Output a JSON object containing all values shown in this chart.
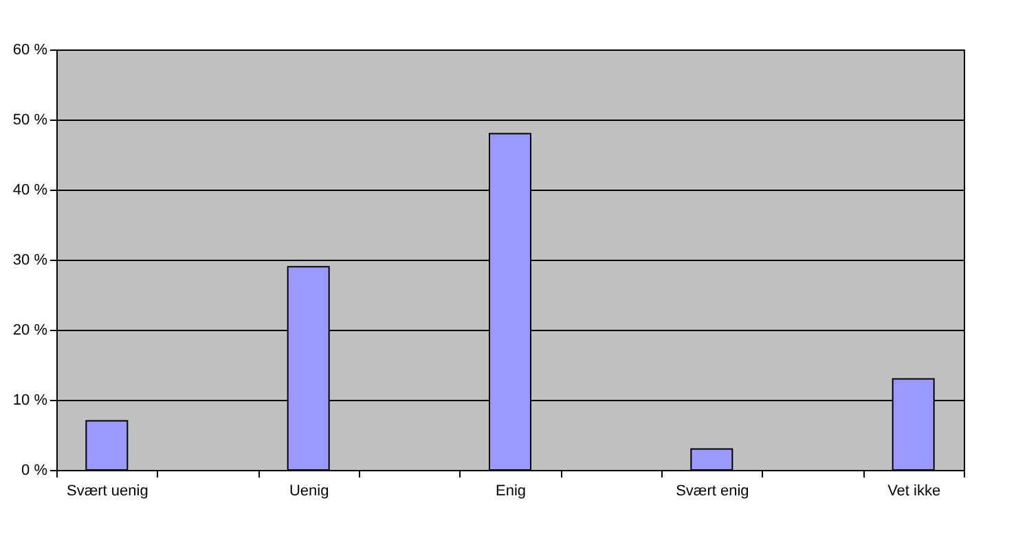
{
  "chart_data": {
    "type": "bar",
    "categories": [
      "Svært uenig",
      null,
      "Uenig",
      null,
      "Enig",
      null,
      "Svært enig",
      null,
      "Vet ikke"
    ],
    "values": [
      7,
      null,
      29,
      null,
      48,
      null,
      3,
      null,
      13
    ],
    "color": "#9999ff",
    "ylim": [
      0,
      60
    ],
    "yticks": [
      {
        "value": 0,
        "label": "0 %"
      },
      {
        "value": 10,
        "label": "10 %"
      },
      {
        "value": 20,
        "label": "20 %"
      },
      {
        "value": 30,
        "label": "30 %"
      },
      {
        "value": 40,
        "label": "40 %"
      },
      {
        "value": 50,
        "label": "50 %"
      },
      {
        "value": 60,
        "label": "60 %"
      }
    ],
    "grid": "y"
  }
}
